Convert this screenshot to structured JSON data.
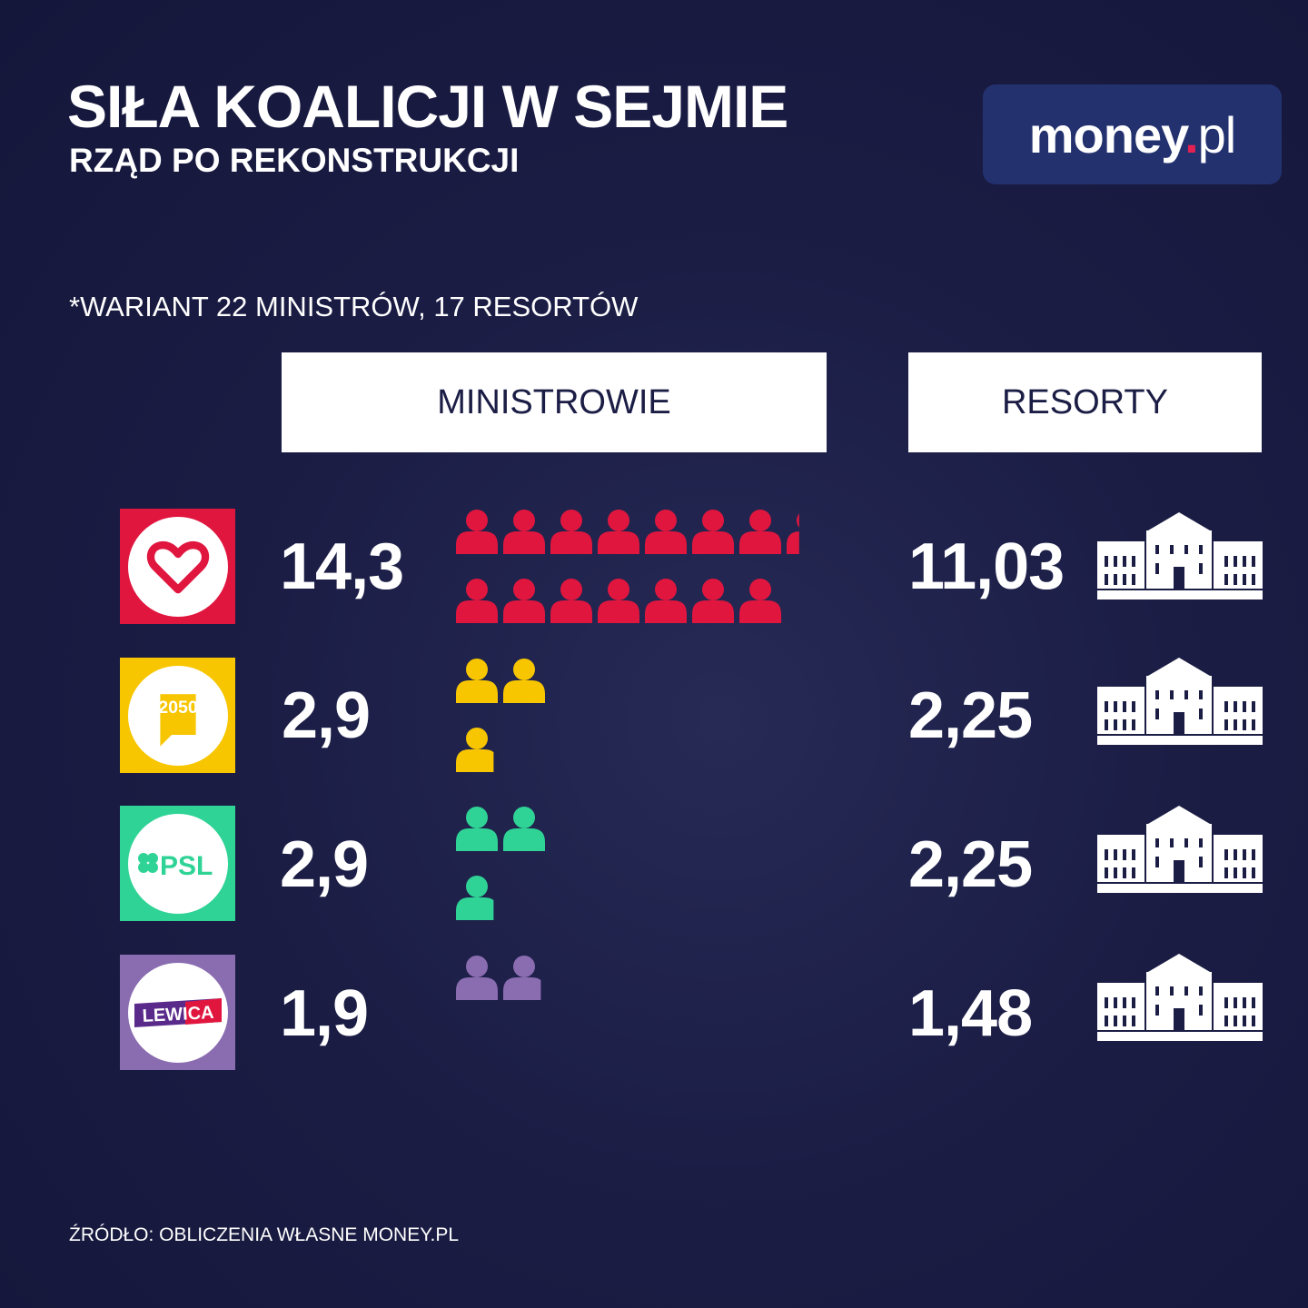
{
  "header": {
    "title": "SIŁA KOALICJI W SEJMIE",
    "subtitle": "RZĄD PO REKONSTRUKCJI"
  },
  "brand": {
    "logo_text_main": "money",
    "logo_text_dot": ".",
    "logo_text_tld": "pl",
    "accent": "#e52152",
    "box_color": "#23326f"
  },
  "note": "*WARIANT 22 MINISTRÓW, 17 RESORTÓW",
  "columns": {
    "ministers": "MINISTROWIE",
    "departments": "RESORTY"
  },
  "parties": [
    {
      "logo_icon": "heart-icon",
      "color": "#e0163f",
      "ministers_label": "14,3",
      "departments_label": "11,03"
    },
    {
      "logo_icon": "polska-2050-icon",
      "logo_text": "2050",
      "color": "#f7c600",
      "ministers_label": "2,9",
      "departments_label": "2,25"
    },
    {
      "logo_icon": "clover-icon",
      "logo_text": "PSL",
      "color": "#2fd396",
      "ministers_label": "2,9",
      "departments_label": "2,25"
    },
    {
      "logo_icon": "lewica-icon",
      "logo_text": "LEWICA",
      "color": "#8a6cb0",
      "ministers_label": "1,9",
      "departments_label": "1,48"
    }
  ],
  "chart_data": {
    "type": "pictogram",
    "title": "SIŁA KOALICJI W SEJMIE",
    "subtitle": "RZĄD PO REKONSTRUKCJI",
    "categories": [
      "KO",
      "Polska 2050",
      "PSL",
      "Lewica"
    ],
    "series": [
      {
        "name": "MINISTROWIE",
        "values": [
          14.3,
          2.9,
          2.9,
          1.9
        ]
      },
      {
        "name": "RESORTY",
        "values": [
          11.03,
          2.25,
          2.25,
          1.48
        ]
      }
    ],
    "colors": [
      "#e0163f",
      "#f7c600",
      "#2fd396",
      "#8a6cb0"
    ]
  },
  "source": "ŹRÓDŁO: OBLICZENIA WŁASNE MONEY.PL"
}
